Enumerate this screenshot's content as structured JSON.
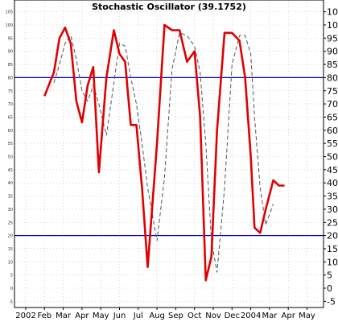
{
  "chart_data": {
    "type": "line",
    "title": "Stochastic Oscillator (39.1752)",
    "ylim": [
      -5,
      105
    ],
    "y_ticks": [
      -5,
      0,
      5,
      10,
      15,
      20,
      25,
      30,
      35,
      40,
      45,
      50,
      55,
      60,
      65,
      70,
      75,
      80,
      85,
      90,
      95,
      100,
      105
    ],
    "x_labels": [
      "2002",
      "Feb",
      "Mar",
      "Apr",
      "May",
      "Jun",
      "Jul",
      "Aug",
      "Sep",
      "Oct",
      "Nov",
      "Dec",
      "2004",
      "Mar",
      "Apr",
      "May"
    ],
    "grid": true,
    "reference_lines": [
      80,
      20
    ],
    "colors": {
      "main": "#e00000",
      "signal": "#555555",
      "reference": "#0000cc",
      "grid": "#bbbbbb"
    },
    "series": [
      {
        "style": "solid-red",
        "x": [
          1.0,
          1.5,
          1.8,
          2.1,
          2.4,
          2.7,
          3.0,
          3.3,
          3.6,
          3.9,
          4.3,
          4.7,
          5.0,
          5.3,
          5.6,
          5.9,
          6.2,
          6.5,
          7.0,
          7.4,
          7.8,
          8.2,
          8.6,
          9.0,
          9.3,
          9.6,
          9.9,
          10.2,
          10.6,
          11.0,
          11.4,
          11.7,
          12.0,
          12.2,
          12.5,
          12.8,
          13.2,
          13.5,
          13.8
        ],
        "values": [
          73,
          82,
          95,
          99,
          93,
          71,
          63,
          77,
          84,
          44,
          80,
          98,
          89,
          86,
          62,
          62,
          38,
          8,
          55,
          100,
          98,
          98,
          86,
          90,
          65,
          3,
          12,
          60,
          97,
          97,
          94,
          80,
          50,
          23,
          21,
          30,
          41,
          39,
          39
        ]
      },
      {
        "style": "dashed-gray",
        "x": [
          1.5,
          1.8,
          2.1,
          2.4,
          2.7,
          3.0,
          3.3,
          3.6,
          3.9,
          4.3,
          4.7,
          5.0,
          5.3,
          5.6,
          5.9,
          6.2,
          6.5,
          7.0,
          7.4,
          7.8,
          8.2,
          8.6,
          9.0,
          9.3,
          9.6,
          9.9,
          10.2,
          10.6,
          11.0,
          11.4,
          11.7,
          12.0,
          12.2,
          12.5,
          12.8,
          13.2
        ],
        "values": [
          78,
          85,
          93,
          96,
          87,
          75,
          71,
          77,
          70,
          58,
          78,
          93,
          92,
          80,
          70,
          55,
          38,
          18,
          42,
          83,
          97,
          96,
          92,
          82,
          55,
          18,
          6,
          38,
          85,
          96,
          96,
          89,
          65,
          38,
          24,
          32
        ]
      }
    ]
  }
}
